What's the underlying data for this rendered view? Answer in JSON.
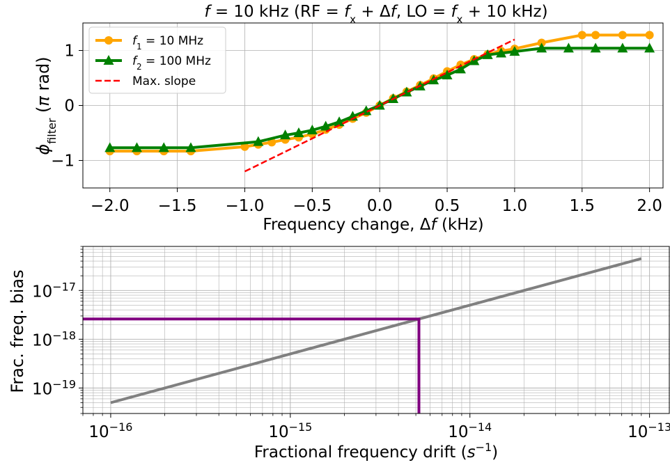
{
  "chart_data": [
    {
      "type": "line",
      "title_parts": [
        "f",
        " = 10 kHz (RF = ",
        "f",
        "x",
        " + Δ",
        "f",
        ", LO = ",
        "f",
        "x",
        " + 10 kHz)"
      ],
      "xlabel_parts": [
        "Frequency change, Δ",
        "f",
        " (kHz)"
      ],
      "ylabel_parts": [
        "ϕ",
        "filter",
        " (",
        "π",
        " rad)"
      ],
      "xlim": [
        -2.2,
        2.1
      ],
      "ylim": [
        -1.5,
        1.5
      ],
      "xticks": [
        -2.0,
        -1.5,
        -1.0,
        -0.5,
        0.0,
        0.5,
        1.0,
        1.5,
        2.0
      ],
      "xtick_labels": [
        "−2.0",
        "−1.5",
        "−1.0",
        "−0.5",
        "0.0",
        "0.5",
        "1.0",
        "1.5",
        "2.0"
      ],
      "yticks": [
        -1,
        0,
        1
      ],
      "ytick_labels": [
        "−1",
        "0",
        "1"
      ],
      "grid": true,
      "legend_position": "top-left",
      "series": [
        {
          "legend_parts": [
            "f",
            "1",
            " = 10 MHz"
          ],
          "color": "#ffa500",
          "marker": "circle",
          "x": [
            -2.0,
            -1.8,
            -1.6,
            -1.4,
            -1.0,
            -0.9,
            -0.8,
            -0.7,
            -0.6,
            -0.5,
            -0.4,
            -0.3,
            -0.2,
            -0.1,
            0.0,
            0.1,
            0.2,
            0.3,
            0.4,
            0.5,
            0.6,
            0.7,
            0.8,
            0.9,
            1.0,
            1.2,
            1.5,
            1.6,
            1.8,
            2.0
          ],
          "y": [
            -0.83,
            -0.83,
            -0.83,
            -0.83,
            -0.75,
            -0.71,
            -0.67,
            -0.62,
            -0.58,
            -0.52,
            -0.44,
            -0.35,
            -0.24,
            -0.13,
            0.0,
            0.13,
            0.25,
            0.37,
            0.49,
            0.62,
            0.74,
            0.84,
            0.93,
            0.99,
            1.03,
            1.14,
            1.28,
            1.28,
            1.28,
            1.28
          ]
        },
        {
          "legend_parts": [
            "f",
            "2",
            " = 100 MHz"
          ],
          "color": "#008000",
          "marker": "triangle",
          "x": [
            -2.0,
            -1.8,
            -1.6,
            -1.4,
            -0.9,
            -0.7,
            -0.6,
            -0.5,
            -0.4,
            -0.3,
            -0.2,
            -0.1,
            0.0,
            0.1,
            0.2,
            0.3,
            0.4,
            0.5,
            0.6,
            0.7,
            0.8,
            0.9,
            1.0,
            1.2,
            1.4,
            1.6,
            1.8,
            2.0
          ],
          "y": [
            -0.77,
            -0.77,
            -0.77,
            -0.77,
            -0.66,
            -0.54,
            -0.5,
            -0.45,
            -0.38,
            -0.3,
            -0.2,
            -0.1,
            0.0,
            0.12,
            0.24,
            0.35,
            0.46,
            0.55,
            0.66,
            0.81,
            0.92,
            0.95,
            0.98,
            1.04,
            1.04,
            1.04,
            1.04,
            1.04
          ]
        },
        {
          "legend_parts": [
            "Max. slope"
          ],
          "color": "#ff0000",
          "dashed": true,
          "x": [
            -1.0,
            1.0
          ],
          "y": [
            -1.2,
            1.2
          ]
        }
      ]
    },
    {
      "type": "line",
      "scale": "loglog",
      "xlabel_parts": [
        "Fractional frequency drift (",
        "s",
        "−1",
        ")"
      ],
      "ylabel_parts": [
        "Frac. freq. bias"
      ],
      "xlim": [
        7e-17,
        1.3e-13
      ],
      "ylim": [
        3e-20,
        8e-17
      ],
      "xticks": [
        1e-16,
        1e-15,
        1e-14,
        1e-13
      ],
      "xtick_labels": [
        [
          "10",
          "−16"
        ],
        [
          "10",
          "−15"
        ],
        [
          "10",
          "−14"
        ],
        [
          "10",
          "−13"
        ]
      ],
      "yticks": [
        1e-19,
        1e-18,
        1e-17
      ],
      "ytick_labels": [
        [
          "10",
          "−19"
        ],
        [
          "10",
          "−18"
        ],
        [
          "10",
          "−17"
        ]
      ],
      "grid": true,
      "grid_minor": true,
      "series": [
        {
          "color": "#808080",
          "x": [
            1e-16,
            9e-14
          ],
          "y": [
            5e-20,
            4.5e-17
          ]
        },
        {
          "color": "#800080",
          "x": [
            7e-17,
            5.2e-15,
            5.2e-15
          ],
          "y": [
            2.6e-18,
            2.6e-18,
            3e-20
          ]
        }
      ]
    }
  ]
}
